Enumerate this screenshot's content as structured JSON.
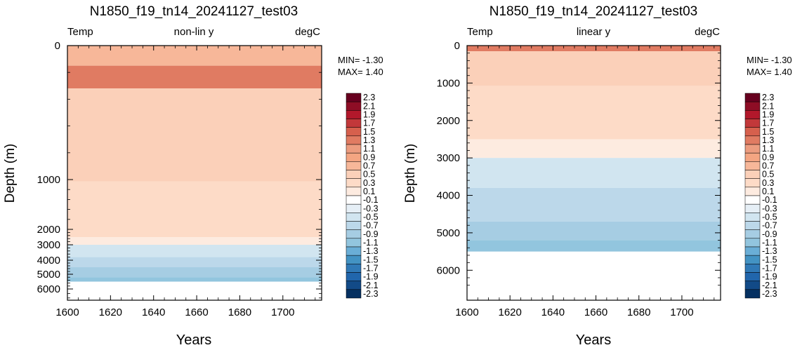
{
  "colorbar": {
    "labels": [
      "2.3",
      "2.1",
      "1.9",
      "1.7",
      "1.5",
      "1.3",
      "1.1",
      "0.9",
      "0.7",
      "0.5",
      "0.3",
      "0.1",
      "-0.1",
      "-0.3",
      "-0.5",
      "-0.7",
      "-0.9",
      "-1.1",
      "-1.3",
      "-1.5",
      "-1.7",
      "-1.9",
      "-2.1",
      "-2.3"
    ],
    "colors": [
      "#67001f",
      "#8e0d25",
      "#b2182b",
      "#c2383a",
      "#d6604d",
      "#e07b62",
      "#ec9c7f",
      "#f4a582",
      "#f7b799",
      "#fbd0b9",
      "#fddbc7",
      "#fdebe0",
      "#ffffff",
      "#e6eff6",
      "#d1e5f0",
      "#bcd8ea",
      "#a6cde3",
      "#92c5de",
      "#6aaed6",
      "#4393c3",
      "#3079b6",
      "#2166ac",
      "#124a87",
      "#053061"
    ]
  },
  "chart_data": [
    {
      "type": "heatmap",
      "panel": "left",
      "title": "N1850_f19_tn14_20241127_test03",
      "left_label": "Temp",
      "center_label": "non-lin y",
      "right_label": "degC",
      "xlabel": "Years",
      "ylabel": "Depth (m)",
      "xlim": [
        1600,
        1718
      ],
      "x_ticks": [
        "1600",
        "1620",
        "1640",
        "1660",
        "1680",
        "1700"
      ],
      "y_scale": "non-linear",
      "y_ticks": [
        "0",
        "1000",
        "2000",
        "3000",
        "4000",
        "5000",
        "6000"
      ],
      "min_text": "MIN= -1.30",
      "max_text": "MAX=  1.40",
      "layers": [
        {
          "top": 0,
          "bottom": 150,
          "value": 0.7
        },
        {
          "top": 150,
          "bottom": 320,
          "value": 1.3
        },
        {
          "top": 320,
          "bottom": 1040,
          "value": 0.5
        },
        {
          "top": 1040,
          "bottom": 2500,
          "value": 0.2
        },
        {
          "top": 2500,
          "bottom": 3000,
          "value": 0.0
        },
        {
          "top": 3000,
          "bottom": 3800,
          "value": -0.4
        },
        {
          "top": 3800,
          "bottom": 4500,
          "value": -0.7
        },
        {
          "top": 4500,
          "bottom": 5200,
          "value": -0.9
        },
        {
          "top": 5200,
          "bottom": 5500,
          "value": -1.2
        }
      ]
    },
    {
      "type": "heatmap",
      "panel": "right",
      "title": "N1850_f19_tn14_20241127_test03",
      "left_label": "Temp",
      "center_label": "linear y",
      "right_label": "degC",
      "xlabel": "Years",
      "ylabel": "Depth (m)",
      "xlim": [
        1600,
        1718
      ],
      "ylim": [
        0,
        6800
      ],
      "x_ticks": [
        "1600",
        "1620",
        "1640",
        "1660",
        "1680",
        "1700"
      ],
      "y_scale": "linear",
      "y_ticks": [
        "0",
        "1000",
        "2000",
        "3000",
        "4000",
        "5000",
        "6000"
      ],
      "min_text": "MIN= -1.30",
      "max_text": "MAX=  1.40",
      "layers": [
        {
          "top": 0,
          "bottom": 150,
          "value": 1.3
        },
        {
          "top": 150,
          "bottom": 1080,
          "value": 0.5
        },
        {
          "top": 1080,
          "bottom": 2500,
          "value": 0.2
        },
        {
          "top": 2500,
          "bottom": 3000,
          "value": 0.0
        },
        {
          "top": 3000,
          "bottom": 3800,
          "value": -0.4
        },
        {
          "top": 3800,
          "bottom": 4700,
          "value": -0.7
        },
        {
          "top": 4700,
          "bottom": 5200,
          "value": -0.9
        },
        {
          "top": 5200,
          "bottom": 5500,
          "value": -1.2
        }
      ]
    }
  ]
}
